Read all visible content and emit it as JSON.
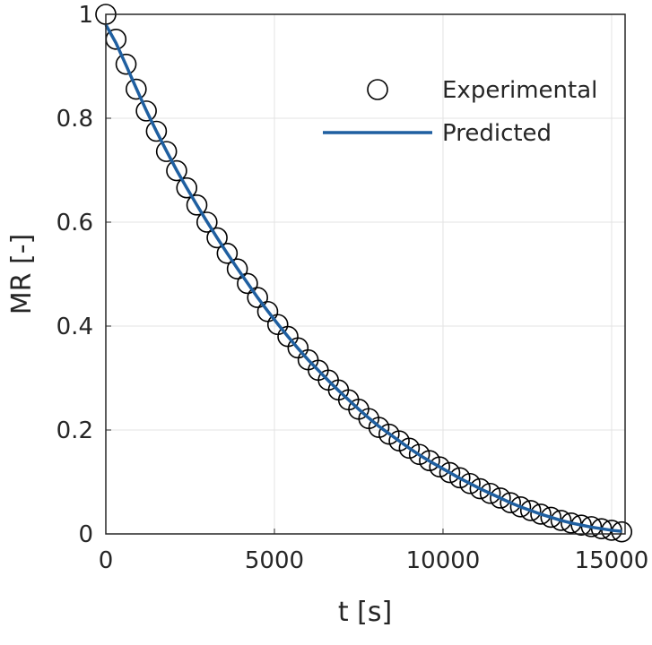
{
  "chart_data": {
    "type": "scatter",
    "title": "",
    "xlabel": "t [s]",
    "ylabel": "MR [-]",
    "xlim": [
      0,
      15400
    ],
    "ylim": [
      0,
      1
    ],
    "xticks": [
      0,
      5000,
      10000,
      15000
    ],
    "xtick_labels": [
      "0",
      "5000",
      "10000",
      "15000"
    ],
    "yticks": [
      0,
      0.2,
      0.4,
      0.6,
      0.8,
      1
    ],
    "ytick_labels": [
      "0",
      "0.2",
      "0.4",
      "0.6",
      "0.8",
      "1"
    ],
    "grid": true,
    "legend_position": "top-right",
    "colors": {
      "experimental": "#000000",
      "predicted": "#1f5fa0",
      "grid": "#e3e3e3",
      "axis": "#262626"
    },
    "x": [
      0,
      300,
      600,
      900,
      1200,
      1500,
      1800,
      2100,
      2400,
      2700,
      3000,
      3300,
      3600,
      3900,
      4200,
      4500,
      4800,
      5100,
      5400,
      5700,
      6000,
      6300,
      6600,
      6900,
      7200,
      7500,
      7800,
      8100,
      8400,
      8700,
      9000,
      9300,
      9600,
      9900,
      10200,
      10500,
      10800,
      11100,
      11400,
      11700,
      12000,
      12300,
      12600,
      12900,
      13200,
      13500,
      13800,
      14100,
      14400,
      14700,
      15000,
      15300
    ],
    "series": [
      {
        "name": "Experimental",
        "marker": "circle",
        "values": [
          1.0,
          0.952,
          0.904,
          0.856,
          0.814,
          0.775,
          0.736,
          0.699,
          0.666,
          0.633,
          0.6,
          0.57,
          0.54,
          0.51,
          0.482,
          0.455,
          0.428,
          0.403,
          0.38,
          0.358,
          0.335,
          0.315,
          0.296,
          0.277,
          0.258,
          0.24,
          0.222,
          0.205,
          0.192,
          0.179,
          0.165,
          0.153,
          0.141,
          0.129,
          0.118,
          0.108,
          0.097,
          0.087,
          0.078,
          0.069,
          0.06,
          0.052,
          0.045,
          0.038,
          0.032,
          0.026,
          0.021,
          0.017,
          0.014,
          0.01,
          0.007,
          0.004
        ]
      },
      {
        "name": "Predicted",
        "marker": "line",
        "values": [
          0.98,
          0.945,
          0.902,
          0.858,
          0.815,
          0.775,
          0.737,
          0.7,
          0.666,
          0.633,
          0.601,
          0.57,
          0.54,
          0.511,
          0.483,
          0.455,
          0.429,
          0.404,
          0.38,
          0.357,
          0.335,
          0.315,
          0.295,
          0.276,
          0.258,
          0.24,
          0.223,
          0.207,
          0.193,
          0.179,
          0.165,
          0.152,
          0.14,
          0.129,
          0.118,
          0.107,
          0.097,
          0.087,
          0.078,
          0.069,
          0.06,
          0.052,
          0.045,
          0.038,
          0.032,
          0.026,
          0.021,
          0.017,
          0.013,
          0.01,
          0.007,
          0.005
        ]
      }
    ]
  }
}
